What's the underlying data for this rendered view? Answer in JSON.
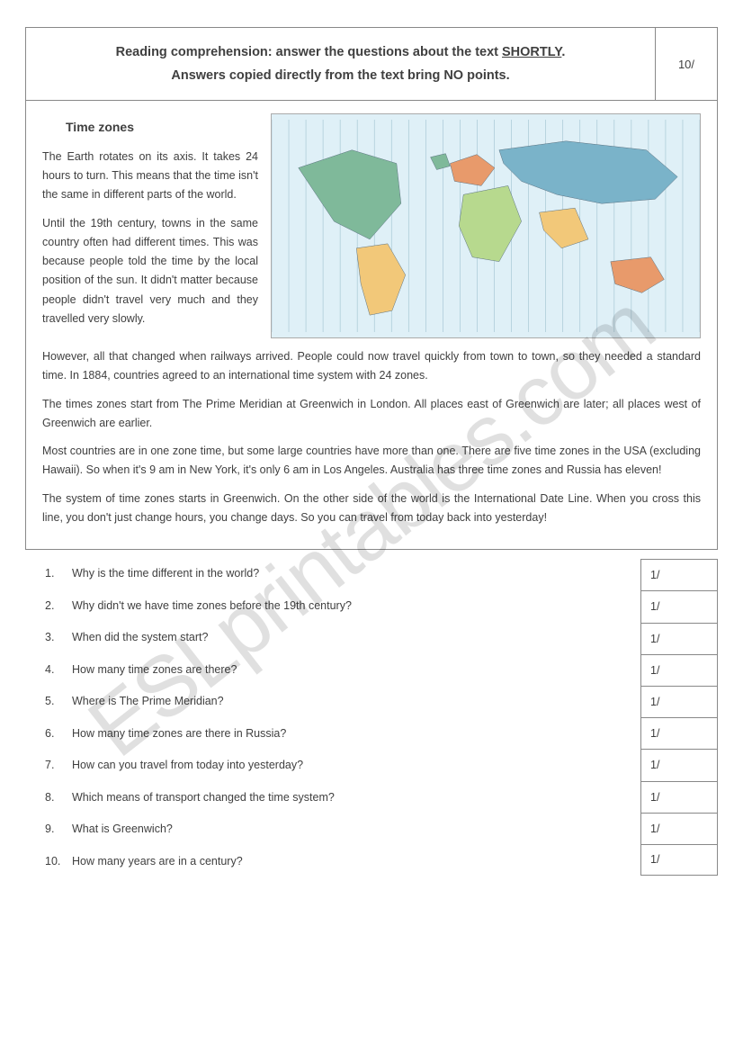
{
  "watermark": "ESLprintables.com",
  "header": {
    "line1_pre": "Reading comprehension: answer the questions about the text ",
    "line1_u": "SHORTLY",
    "line1_post": ".",
    "line2": "Answers copied directly from the text bring NO points.",
    "points": "10/"
  },
  "article": {
    "title": "Time zones",
    "left_paras": [
      "The Earth rotates on its axis. It takes 24 hours to turn. This means that the time isn't the same in different parts of the world.",
      "Until the 19th century, towns in the same country often had different times. This was because people told the time by the local position of the sun. It didn't matter because people didn't travel very much and they travelled very slowly."
    ],
    "full_paras": [
      " However, all that changed when railways arrived. People could now travel quickly from town to town, so they needed a standard time. In 1884, countries agreed to an international time system with 24 zones.",
      "The times zones start from The Prime Meridian at Greenwich in London. All places east of Greenwich are later; all places west of Greenwich are earlier.",
      "Most countries are in one zone time, but some large countries have more than one. There are five time zones in the USA (excluding Hawaii). So when it's 9 am in New York, it's only 6 am in Los Angeles. Australia has three time zones and Russia has eleven!",
      "The system of time zones starts in Greenwich. On the other side of the world is the International Date Line. When you cross this line, you don't just change hours, you change days. So you can travel from today back into yesterday!"
    ]
  },
  "map": {
    "colors": {
      "ocean": "#dff0f7",
      "land1": "#7fb99a",
      "land2": "#f2c879",
      "land3": "#e89a6b",
      "land4": "#7ab3c9",
      "land5": "#b7d98e",
      "border": "#5a7080",
      "gridline": "#a8c8d5"
    },
    "gridlines": 25
  },
  "questions": [
    {
      "n": "1.",
      "q": "Why is the time different in the world?",
      "pts": "1/"
    },
    {
      "n": "2.",
      "q": "Why didn't we have time zones before the 19th century?",
      "pts": "1/"
    },
    {
      "n": "3.",
      "q": "When did the system start?",
      "pts": "1/"
    },
    {
      "n": "4.",
      "q": "How many time zones are there?",
      "pts": "1/"
    },
    {
      "n": "5.",
      "q": "Where is The Prime Meridian?",
      "pts": "1/"
    },
    {
      "n": "6.",
      "q": "How many time zones are there in Russia?",
      "pts": "1/"
    },
    {
      "n": "7.",
      "q": "How can you travel from today into yesterday?",
      "pts": "1/"
    },
    {
      "n": "8.",
      "q": "Which means of transport changed the time system?",
      "pts": "1/"
    },
    {
      "n": "9.",
      "q": "What is Greenwich?",
      "pts": "1/"
    },
    {
      "n": "10.",
      "q": "How many years are in a century?",
      "pts": "1/"
    }
  ]
}
